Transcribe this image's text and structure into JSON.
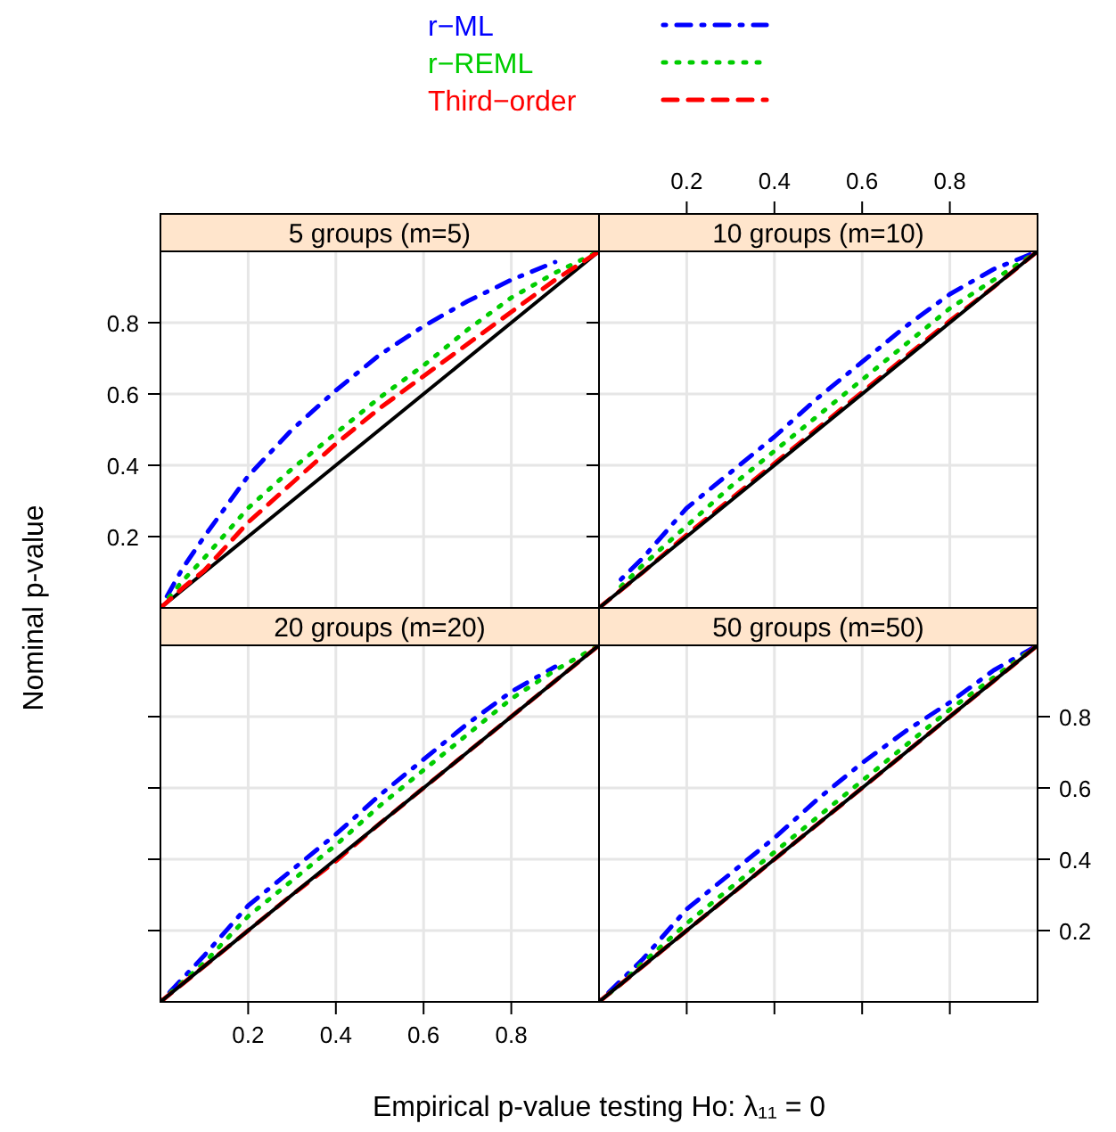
{
  "chart_data": [
    {
      "type": "line",
      "title": "5 groups (m=5)",
      "xlabel": "Empirical p-value testing Ho:  λ₁₁ = 0",
      "ylabel": "Nominal p-value",
      "legend": "top",
      "grid": true,
      "tick_labels": "y",
      "xlim": [
        0,
        1
      ],
      "xticks": [
        0.2,
        0.4,
        0.6,
        0.8
      ],
      "ylim": [
        0,
        1
      ],
      "yticks": [
        0.2,
        0.4,
        0.6,
        0.8
      ],
      "x": [
        0,
        0.05,
        0.1,
        0.2,
        0.3,
        0.4,
        0.5,
        0.6,
        0.7,
        0.8,
        0.9,
        1
      ],
      "series": [
        {
          "name": "r−ML",
          "color": "#0000ff",
          "line_style": "dashdot",
          "values": [
            0,
            0.11,
            0.2,
            0.37,
            0.5,
            0.61,
            0.71,
            0.79,
            0.86,
            0.92,
            0.97,
            null
          ]
        },
        {
          "name": "r−REML",
          "color": "#00cd00",
          "line_style": "dotted",
          "values": [
            0,
            0.075,
            0.14,
            0.28,
            0.39,
            0.49,
            0.59,
            0.68,
            0.78,
            0.87,
            0.94,
            1
          ]
        },
        {
          "name": "Third−order",
          "color": "#ff0000",
          "line_style": "dashed",
          "values": [
            0,
            0.055,
            0.105,
            0.24,
            0.35,
            0.46,
            0.56,
            0.65,
            0.74,
            0.83,
            0.92,
            1
          ]
        },
        {
          "color": "#000000",
          "line_style": "solid",
          "values": [
            0,
            0.05,
            0.1,
            0.2,
            0.3,
            0.4,
            0.5,
            0.6,
            0.7,
            0.8,
            0.9,
            1
          ]
        }
      ]
    },
    {
      "type": "line",
      "title": "10 groups (m=10)",
      "grid": true,
      "tick_labels": "x",
      "xlim": [
        0,
        1
      ],
      "x2lim": [
        0,
        1
      ],
      "x2ticks": [
        0.2,
        0.4,
        0.6,
        0.8
      ],
      "ylim": [
        0,
        1
      ],
      "yticks": [
        0.2,
        0.4,
        0.6,
        0.8
      ],
      "x": [
        0,
        0.05,
        0.1,
        0.2,
        0.3,
        0.4,
        0.5,
        0.6,
        0.7,
        0.8,
        0.9,
        1
      ],
      "series": [
        {
          "color": "#0000ff",
          "line_style": "dashdot",
          "values": [
            null,
            0.08,
            0.14,
            0.28,
            0.38,
            0.48,
            0.59,
            0.69,
            0.79,
            0.88,
            0.95,
            1
          ]
        },
        {
          "color": "#00cd00",
          "line_style": "dotted",
          "values": [
            null,
            0.06,
            0.12,
            0.23,
            0.34,
            0.44,
            0.54,
            0.64,
            0.74,
            0.84,
            0.92,
            1
          ]
        },
        {
          "color": "#ff0000",
          "line_style": "dashed",
          "values": [
            0,
            0.05,
            0.1,
            0.205,
            0.305,
            0.405,
            0.505,
            0.605,
            0.705,
            0.805,
            0.9,
            1
          ]
        },
        {
          "color": "#000000",
          "line_style": "solid",
          "values": [
            0,
            0.05,
            0.1,
            0.2,
            0.3,
            0.4,
            0.5,
            0.6,
            0.7,
            0.8,
            0.9,
            1
          ]
        }
      ]
    },
    {
      "type": "line",
      "title": "20 groups (m=20)",
      "grid": true,
      "tick_labels": "x",
      "xlim": [
        0,
        1
      ],
      "xticks": [
        0.2,
        0.4,
        0.6,
        0.8
      ],
      "ylim": [
        0,
        1
      ],
      "yticks": [
        0.2,
        0.4,
        0.6,
        0.8
      ],
      "x": [
        0,
        0.05,
        0.1,
        0.2,
        0.3,
        0.4,
        0.5,
        0.6,
        0.7,
        0.8,
        0.9,
        1
      ],
      "series": [
        {
          "color": "#0000ff",
          "line_style": "dashdot",
          "values": [
            0,
            0.065,
            0.13,
            0.27,
            0.37,
            0.47,
            0.58,
            0.68,
            0.78,
            0.87,
            0.94,
            null
          ]
        },
        {
          "color": "#00cd00",
          "line_style": "dotted",
          "values": [
            0,
            0.055,
            0.11,
            0.24,
            0.34,
            0.44,
            0.55,
            0.65,
            0.75,
            0.85,
            0.93,
            1
          ]
        },
        {
          "color": "#ff0000",
          "line_style": "dashed",
          "values": [
            0,
            0.05,
            0.1,
            0.2,
            0.3,
            0.395,
            0.5,
            0.6,
            0.7,
            0.8,
            0.9,
            1
          ]
        },
        {
          "color": "#000000",
          "line_style": "solid",
          "values": [
            0,
            0.05,
            0.1,
            0.2,
            0.3,
            0.4,
            0.5,
            0.6,
            0.7,
            0.8,
            0.9,
            1
          ]
        }
      ]
    },
    {
      "type": "line",
      "title": "50 groups (m=50)",
      "grid": true,
      "tick_labels": "y",
      "xlim": [
        0,
        1
      ],
      "xticks": [
        0.2,
        0.4,
        0.6,
        0.8
      ],
      "y2lim": [
        0,
        1
      ],
      "y2ticks": [
        0.2,
        0.4,
        0.6,
        0.8
      ],
      "x": [
        0,
        0.05,
        0.1,
        0.2,
        0.3,
        0.4,
        0.5,
        0.6,
        0.7,
        0.8,
        0.9,
        1
      ],
      "series": [
        {
          "axis": "y2",
          "color": "#0000ff",
          "line_style": "dashdot",
          "values": [
            0,
            0.06,
            0.12,
            0.26,
            0.36,
            0.46,
            0.57,
            0.67,
            0.76,
            0.84,
            0.93,
            1
          ]
        },
        {
          "axis": "y2",
          "color": "#00cd00",
          "line_style": "dotted",
          "values": [
            0,
            0.05,
            0.11,
            0.22,
            0.32,
            0.42,
            0.52,
            0.62,
            0.72,
            0.82,
            0.91,
            1
          ]
        },
        {
          "axis": "y2",
          "color": "#ff0000",
          "line_style": "dashed",
          "values": [
            0,
            0.05,
            0.1,
            0.2,
            0.3,
            0.4,
            0.5,
            0.6,
            0.7,
            0.8,
            0.9,
            1
          ]
        },
        {
          "axis": "y2",
          "color": "#000000",
          "line_style": "solid",
          "values": [
            0,
            0.05,
            0.1,
            0.2,
            0.3,
            0.4,
            0.5,
            0.6,
            0.7,
            0.8,
            0.9,
            1
          ]
        }
      ]
    }
  ]
}
